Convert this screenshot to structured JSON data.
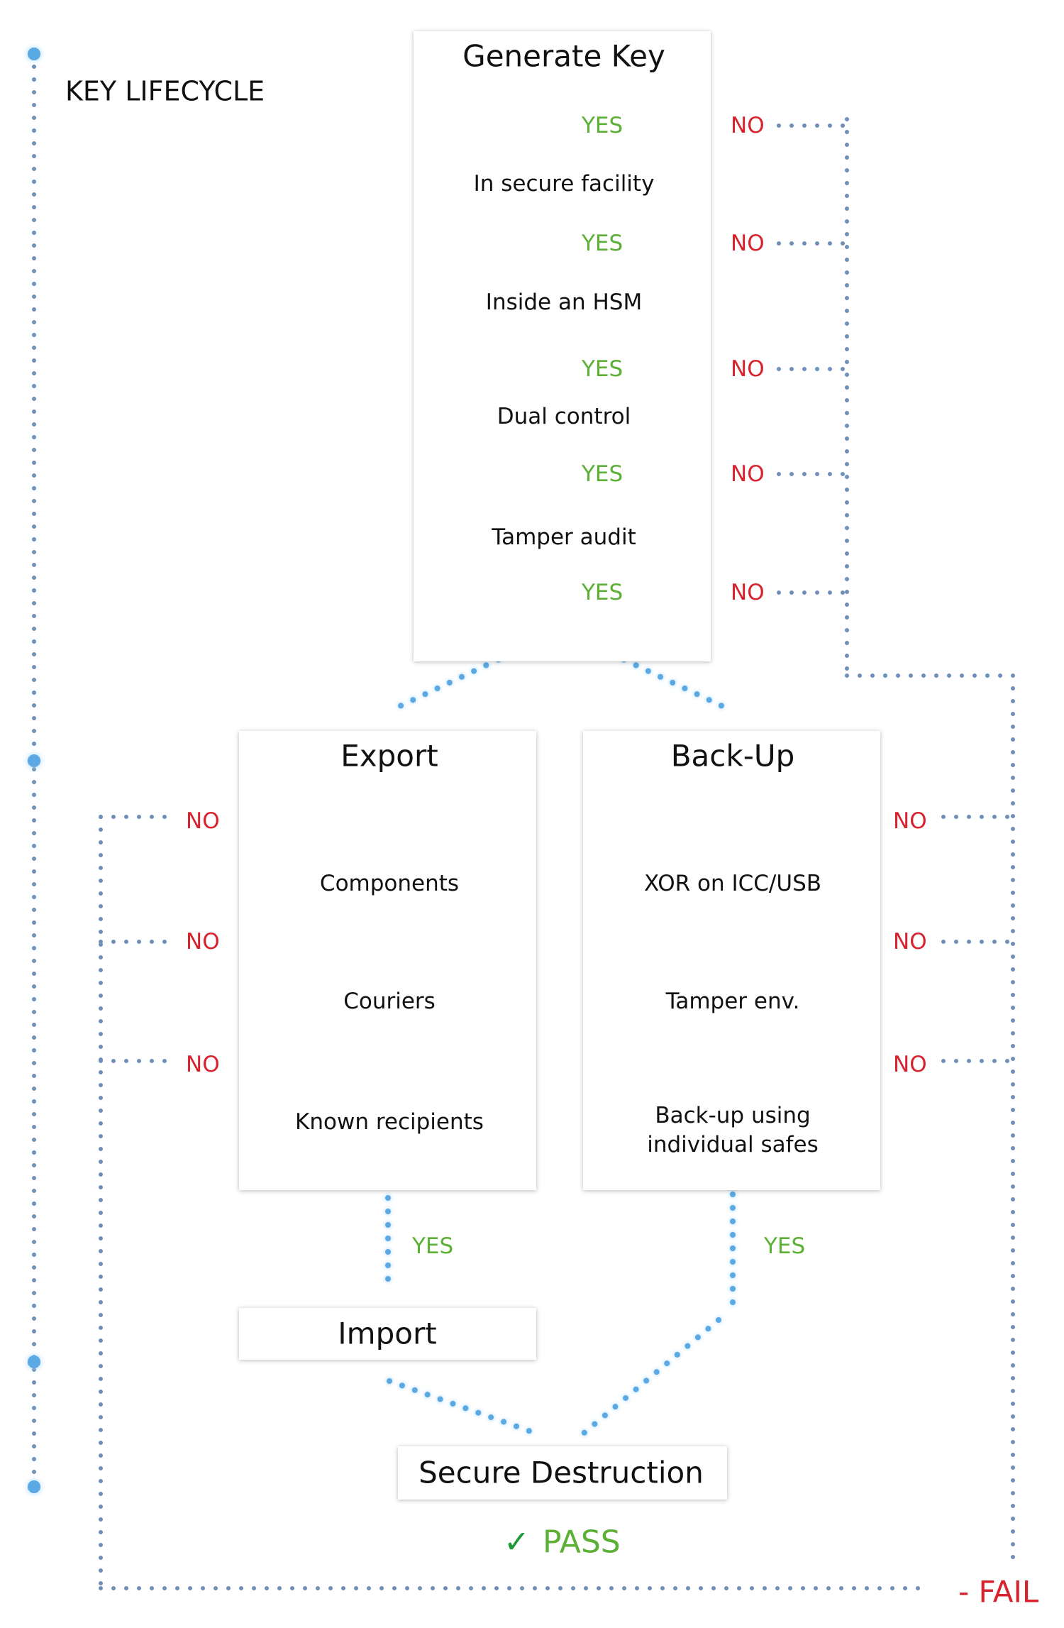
{
  "diagram": {
    "heading": "KEY LIFECYCLE",
    "colors": {
      "yes": "#5bb035",
      "no": "#d7232d",
      "connector": "#6f8fb8",
      "flow": "#5aa9e2"
    },
    "generate": {
      "title": "Generate Key",
      "steps": [
        "In secure facility",
        "Inside an HSM",
        "Dual control",
        "Tamper audit"
      ],
      "yes_labels": [
        "YES",
        "YES",
        "YES",
        "YES",
        "YES"
      ],
      "no_labels": [
        "NO",
        "NO",
        "NO",
        "NO",
        "NO"
      ]
    },
    "export": {
      "title": "Export",
      "steps": [
        "Components",
        "Couriers",
        "Known recipients"
      ],
      "no_labels": [
        "NO",
        "NO",
        "NO"
      ],
      "yes_label": "YES"
    },
    "backup": {
      "title": "Back-Up",
      "steps": [
        "XOR on ICC/USB",
        "Tamper env.",
        "Back-up using",
        "individual safes"
      ],
      "no_labels": [
        "NO",
        "NO",
        "NO"
      ],
      "yes_label": "YES"
    },
    "import": {
      "title": "Import"
    },
    "destruction": {
      "title": "Secure Destruction"
    },
    "pass": {
      "icon": "check-icon",
      "label": "PASS"
    },
    "fail": {
      "label": "- FAIL"
    }
  }
}
